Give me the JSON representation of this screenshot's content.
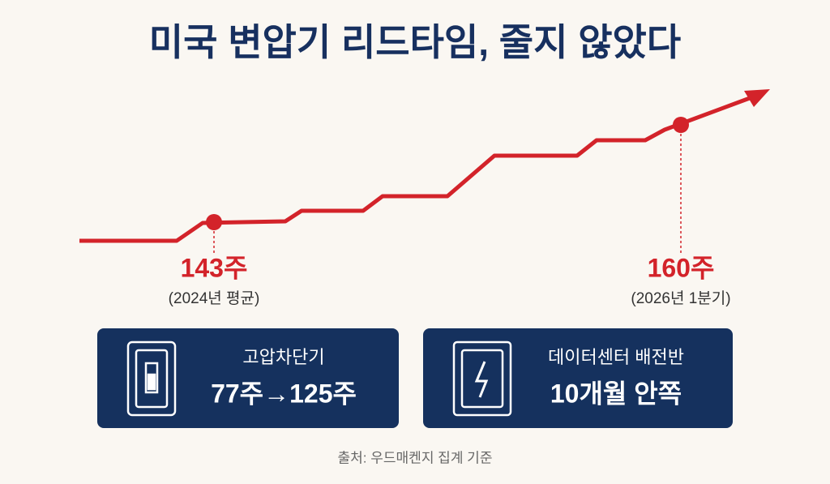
{
  "header": {
    "title": "미국 변압기 리드타임, 줄지 않았다"
  },
  "annotations": [
    {
      "value": "143주",
      "note": "(2024년 평균)"
    },
    {
      "value": "160주",
      "note": "(2026년 1분기)"
    }
  ],
  "cards": [
    {
      "label": "고압차단기",
      "value": "77주→125주"
    },
    {
      "label": "데이터센터 배전반",
      "value": "10개월 안쪽"
    }
  ],
  "footer": {
    "source": "출처: 우드매켄지 집계 기준"
  }
}
